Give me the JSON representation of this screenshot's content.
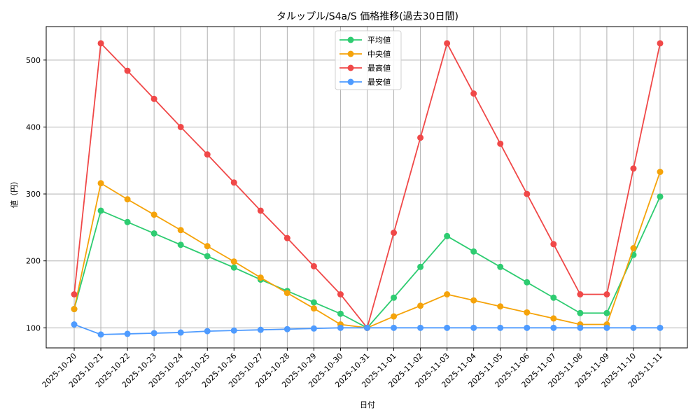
{
  "chart_data": {
    "type": "line",
    "title": "タルップル/S4a/S 価格推移(過去30日間)",
    "xlabel": "日付",
    "ylabel": "値（円）",
    "ylim": [
      70,
      550
    ],
    "yticks": [
      100,
      200,
      300,
      400,
      500
    ],
    "grid": true,
    "legend_position": "upper center",
    "categories": [
      "2025-10-20",
      "2025-10-21",
      "2025-10-22",
      "2025-10-23",
      "2025-10-24",
      "2025-10-25",
      "2025-10-26",
      "2025-10-27",
      "2025-10-28",
      "2025-10-29",
      "2025-10-30",
      "2025-10-31",
      "2025-11-01",
      "2025-11-02",
      "2025-11-03",
      "2025-11-04",
      "2025-11-05",
      "2025-11-06",
      "2025-11-07",
      "2025-11-08",
      "2025-11-09",
      "2025-11-10",
      "2025-11-11"
    ],
    "series": [
      {
        "name": "平均値",
        "color": "#2ecc71",
        "values": [
          128,
          275,
          258,
          241,
          224,
          207,
          190,
          172,
          155,
          138,
          121,
          100,
          145,
          191,
          237,
          214,
          191,
          168,
          145,
          122,
          122,
          209,
          296
        ]
      },
      {
        "name": "中央値",
        "color": "#f5a30a",
        "values": [
          128,
          316,
          292,
          269,
          246,
          222,
          199,
          175,
          152,
          129,
          105,
          100,
          117,
          133,
          150,
          141,
          132,
          123,
          114,
          105,
          105,
          219,
          333
        ]
      },
      {
        "name": "最高値",
        "color": "#f04848",
        "values": [
          150,
          525,
          484,
          442,
          400,
          359,
          317,
          275,
          234,
          192,
          150,
          100,
          242,
          384,
          525,
          450,
          375,
          300,
          225,
          150,
          150,
          338,
          525
        ]
      },
      {
        "name": "最安値",
        "color": "#4e9bff",
        "values": [
          105,
          90,
          91,
          92,
          93,
          95,
          96,
          97,
          98,
          99,
          100,
          100,
          100,
          100,
          100,
          100,
          100,
          100,
          100,
          100,
          100,
          100,
          100
        ]
      }
    ]
  }
}
